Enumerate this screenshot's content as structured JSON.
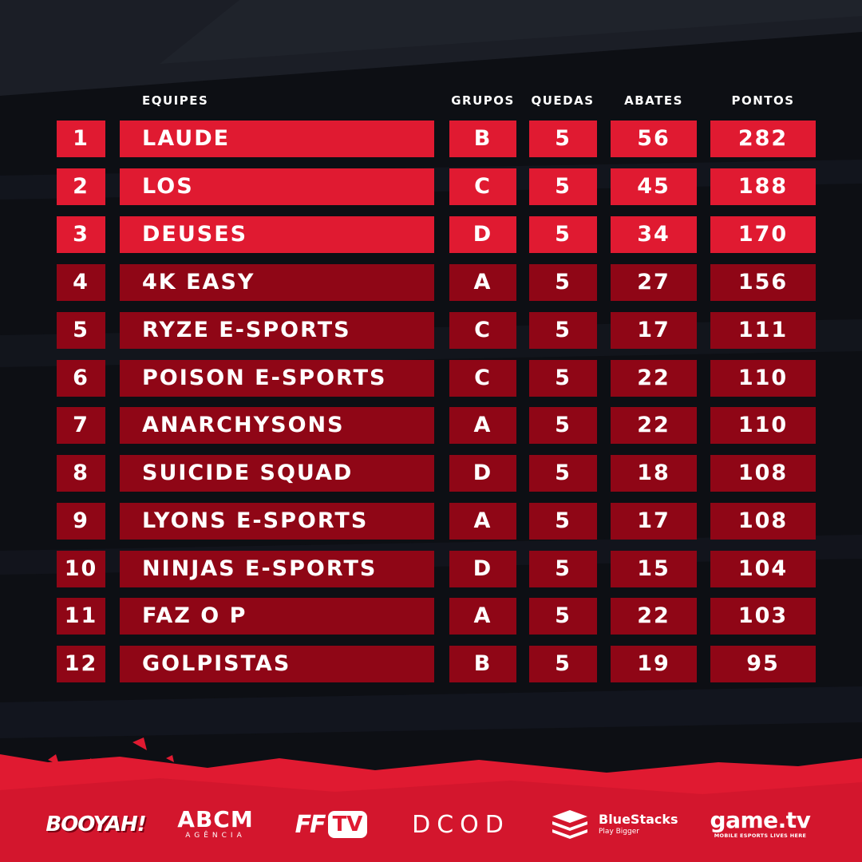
{
  "colors": {
    "background": "#0d0f14",
    "top_rows": "#e01a31",
    "other_rows": "#8f0616",
    "footer": "#e01a31"
  },
  "headers": {
    "team": "EQUIPES",
    "group": "GRUPOS",
    "drops": "QUEDAS",
    "kills": "ABATES",
    "points": "PONTOS"
  },
  "rows": [
    {
      "rank": "1",
      "team": "LAUDE",
      "group": "B",
      "drops": "5",
      "kills": "56",
      "points": "282"
    },
    {
      "rank": "2",
      "team": "LOS",
      "group": "C",
      "drops": "5",
      "kills": "45",
      "points": "188"
    },
    {
      "rank": "3",
      "team": "DEUSES",
      "group": "D",
      "drops": "5",
      "kills": "34",
      "points": "170"
    },
    {
      "rank": "4",
      "team": "4K EASY",
      "group": "A",
      "drops": "5",
      "kills": "27",
      "points": "156"
    },
    {
      "rank": "5",
      "team": "RYZE E-SPORTS",
      "group": "C",
      "drops": "5",
      "kills": "17",
      "points": "111"
    },
    {
      "rank": "6",
      "team": "POISON E-SPORTS",
      "group": "C",
      "drops": "5",
      "kills": "22",
      "points": "110"
    },
    {
      "rank": "7",
      "team": "ANARCHYSONS",
      "group": "A",
      "drops": "5",
      "kills": "22",
      "points": "110"
    },
    {
      "rank": "8",
      "team": "SUICIDE SQUAD",
      "group": "D",
      "drops": "5",
      "kills": "18",
      "points": "108"
    },
    {
      "rank": "9",
      "team": "LYONS E-SPORTS",
      "group": "A",
      "drops": "5",
      "kills": "17",
      "points": "108"
    },
    {
      "rank": "10",
      "team": "NINJAS E-SPORTS",
      "group": "D",
      "drops": "5",
      "kills": "15",
      "points": "104"
    },
    {
      "rank": "11",
      "team": "FAZ O P",
      "group": "A",
      "drops": "5",
      "kills": "22",
      "points": "103"
    },
    {
      "rank": "12",
      "team": "GOLPISTAS",
      "group": "B",
      "drops": "5",
      "kills": "19",
      "points": "95"
    }
  ],
  "sponsors": {
    "booyah": "BOOYAH!",
    "abcm": "ABCM",
    "abcm_sub": "AGÊNCIA",
    "fftv_ff": "FF",
    "fftv_tv": "TV",
    "dcod": "DCOD",
    "bluestacks": "BlueStacks",
    "bluestacks_tag": "Play Bigger",
    "gametv": "game.tv",
    "gametv_tag": "MOBILE ESPORTS LIVES HERE"
  }
}
